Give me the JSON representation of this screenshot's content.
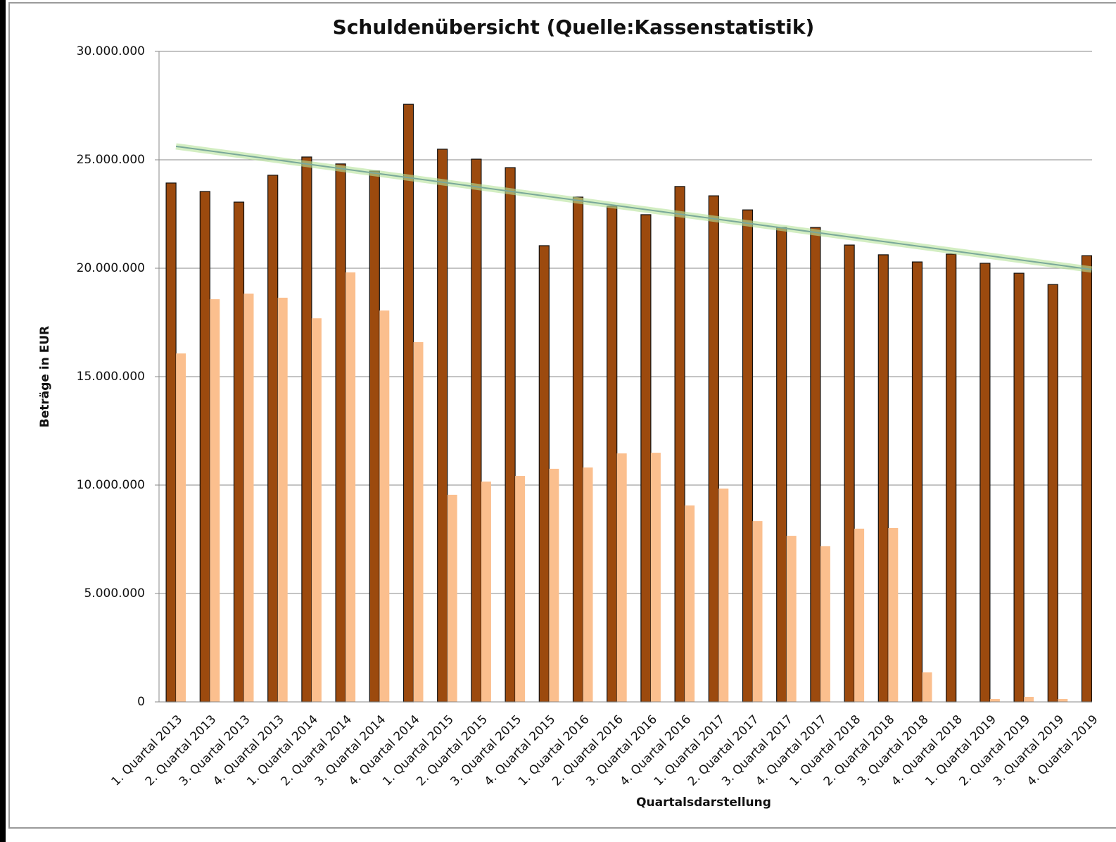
{
  "chart_data": {
    "type": "bar",
    "title": "Schuldenübersicht (Quelle:Kassenstatistik)",
    "y_label": "Beträge in EUR",
    "x_label": "Quartalsdarstellung",
    "categories": [
      "1. Quartal 2013",
      "2. Quartal 2013",
      "3. Quartal 2013",
      "4. Quartal 2013",
      "1. Quartal 2014",
      "2. Quartal 2014",
      "3. Quartal 2014",
      "4. Quartal 2014",
      "1. Quartal 2015",
      "2. Quartal 2015",
      "3. Quartal 2015",
      "4. Quartal 2015",
      "1. Quartal 2016",
      "2. Quartal 2016",
      "3. Quartal 2016",
      "4. Quartal 2016",
      "1. Quartal 2017",
      "2. Quartal 2017",
      "3. Quartal 2017",
      "4. Quartal 2017",
      "1. Quartal 2018",
      "2. Quartal 2018",
      "3. Quartal 2018",
      "4. Quartal 2018",
      "1. Quartal 2019",
      "2. Quartal 2019",
      "3. Quartal 2019",
      "4. Quartal 2019"
    ],
    "series": [
      {
        "color": "#9c4a0e",
        "values": [
          23930000,
          23540000,
          23050000,
          24290000,
          25130000,
          24810000,
          24480000,
          27560000,
          25490000,
          25030000,
          24640000,
          21040000,
          23280000,
          22860000,
          22470000,
          23770000,
          23340000,
          22690000,
          21880000,
          21880000,
          21070000,
          20620000,
          20290000,
          20650000,
          20230000,
          19770000,
          19250000,
          20580000
        ]
      },
      {
        "color": "#fbbf8e",
        "values": [
          16070000,
          18570000,
          18830000,
          18640000,
          17690000,
          19810000,
          18050000,
          16590000,
          9550000,
          10160000,
          10420000,
          10750000,
          10810000,
          11460000,
          11490000,
          9060000,
          9840000,
          8340000,
          7660000,
          7180000,
          7990000,
          8020000,
          1360000,
          0,
          130000,
          230000,
          130000,
          0
        ]
      }
    ],
    "trendline": {
      "color": "#7aa89a",
      "start": 25620000,
      "end": 19940000
    },
    "ylim": [
      0,
      30000000
    ],
    "yticks": [
      0,
      {
        "value": 5000000,
        "label": "5.000.000"
      },
      {
        "value": 10000000,
        "label": "10.000.000"
      },
      {
        "value": 15000000,
        "label": "15.000.000"
      },
      {
        "value": 20000000,
        "label": "20.000.000"
      },
      {
        "value": 25000000,
        "label": "25.000.000"
      },
      {
        "value": 30000000,
        "label": "30.000.000"
      }
    ],
    "grid": true
  }
}
